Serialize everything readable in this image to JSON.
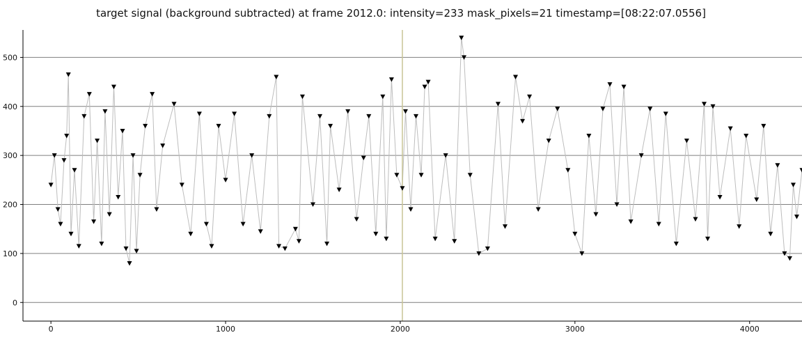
{
  "title": "target signal (background subtracted) at frame 2012.0: intensity=233 mask_pixels=21 timestamp=[08:22:07.0556]",
  "colors": {
    "marker": "#000000",
    "connector": "#bdbdbd",
    "grid": "#7f7f7f",
    "cursor": "#c8c496",
    "axis": "#000000"
  },
  "chart_data": {
    "type": "scatter",
    "marker": "down-triangle",
    "connected": true,
    "xlim": [
      -160,
      4300
    ],
    "ylim": [
      -38,
      556
    ],
    "xticks": [
      0,
      1000,
      2000,
      3000,
      4000
    ],
    "yticks": [
      0,
      100,
      200,
      300,
      400,
      500
    ],
    "grid": "horizontal",
    "cursor_x": 2012,
    "series": [
      {
        "points": [
          [
            0,
            240
          ],
          [
            20,
            300
          ],
          [
            40,
            190
          ],
          [
            55,
            160
          ],
          [
            75,
            290
          ],
          [
            90,
            340
          ],
          [
            100,
            465
          ],
          [
            115,
            140
          ],
          [
            135,
            270
          ],
          [
            160,
            115
          ],
          [
            190,
            380
          ],
          [
            220,
            425
          ],
          [
            245,
            165
          ],
          [
            265,
            330
          ],
          [
            290,
            120
          ],
          [
            310,
            390
          ],
          [
            335,
            180
          ],
          [
            360,
            440
          ],
          [
            385,
            215
          ],
          [
            410,
            350
          ],
          [
            430,
            110
          ],
          [
            450,
            80
          ],
          [
            470,
            300
          ],
          [
            490,
            105
          ],
          [
            510,
            260
          ],
          [
            540,
            360
          ],
          [
            580,
            425
          ],
          [
            605,
            190
          ],
          [
            640,
            320
          ],
          [
            705,
            405
          ],
          [
            750,
            240
          ],
          [
            800,
            140
          ],
          [
            850,
            385
          ],
          [
            890,
            160
          ],
          [
            920,
            115
          ],
          [
            960,
            360
          ],
          [
            1000,
            250
          ],
          [
            1050,
            385
          ],
          [
            1100,
            160
          ],
          [
            1150,
            300
          ],
          [
            1200,
            145
          ],
          [
            1250,
            380
          ],
          [
            1290,
            460
          ],
          [
            1305,
            115
          ],
          [
            1340,
            110
          ],
          [
            1400,
            150
          ],
          [
            1420,
            125
          ],
          [
            1440,
            420
          ],
          [
            1500,
            200
          ],
          [
            1540,
            380
          ],
          [
            1580,
            120
          ],
          [
            1600,
            360
          ],
          [
            1650,
            230
          ],
          [
            1700,
            390
          ],
          [
            1750,
            170
          ],
          [
            1790,
            295
          ],
          [
            1820,
            380
          ],
          [
            1860,
            140
          ],
          [
            1900,
            420
          ],
          [
            1920,
            130
          ],
          [
            1950,
            455
          ],
          [
            1980,
            260
          ],
          [
            2012,
            233
          ],
          [
            2030,
            390
          ],
          [
            2060,
            190
          ],
          [
            2090,
            380
          ],
          [
            2120,
            260
          ],
          [
            2140,
            440
          ],
          [
            2160,
            450
          ],
          [
            2200,
            130
          ],
          [
            2260,
            300
          ],
          [
            2310,
            125
          ],
          [
            2350,
            540
          ],
          [
            2365,
            500
          ],
          [
            2400,
            260
          ],
          [
            2450,
            100
          ],
          [
            2500,
            110
          ],
          [
            2560,
            405
          ],
          [
            2600,
            155
          ],
          [
            2660,
            460
          ],
          [
            2700,
            370
          ],
          [
            2740,
            420
          ],
          [
            2790,
            190
          ],
          [
            2850,
            330
          ],
          [
            2900,
            395
          ],
          [
            2960,
            270
          ],
          [
            3000,
            140
          ],
          [
            3040,
            100
          ],
          [
            3080,
            340
          ],
          [
            3120,
            180
          ],
          [
            3160,
            395
          ],
          [
            3200,
            445
          ],
          [
            3240,
            200
          ],
          [
            3280,
            440
          ],
          [
            3320,
            165
          ],
          [
            3380,
            300
          ],
          [
            3430,
            395
          ],
          [
            3480,
            160
          ],
          [
            3520,
            385
          ],
          [
            3580,
            120
          ],
          [
            3640,
            330
          ],
          [
            3690,
            170
          ],
          [
            3740,
            405
          ],
          [
            3760,
            130
          ],
          [
            3790,
            400
          ],
          [
            3830,
            215
          ],
          [
            3890,
            355
          ],
          [
            3940,
            155
          ],
          [
            3980,
            340
          ],
          [
            4040,
            210
          ],
          [
            4080,
            360
          ],
          [
            4120,
            140
          ],
          [
            4160,
            280
          ],
          [
            4200,
            100
          ],
          [
            4230,
            90
          ],
          [
            4250,
            240
          ],
          [
            4270,
            175
          ],
          [
            4300,
            270
          ]
        ]
      }
    ]
  }
}
